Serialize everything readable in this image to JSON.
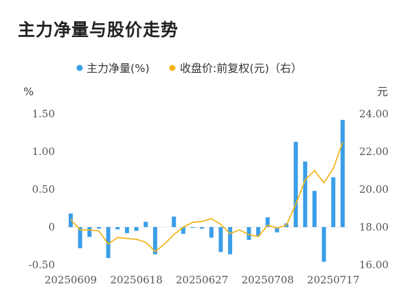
{
  "title": "主力净量与股价走势",
  "chart_data": {
    "type": "bar+line",
    "legend": [
      {
        "label": "主力净量(%)",
        "color": "#3a9ee8"
      },
      {
        "label": "收盘价:前复权(元)（右）",
        "color": "#f2b51e"
      }
    ],
    "left_unit": "%",
    "right_unit": "元",
    "left_ticks": [
      "1.50",
      "1.00",
      "0.50",
      "0",
      "-0.50"
    ],
    "left_tick_values": [
      1.5,
      1.0,
      0.5,
      0,
      -0.5
    ],
    "right_ticks": [
      "24.00",
      "22.00",
      "20.00",
      "18.00",
      "16.00"
    ],
    "right_tick_values": [
      24,
      22,
      20,
      18,
      16
    ],
    "ylim_left": [
      -0.5,
      1.5
    ],
    "ylim_right": [
      16,
      24
    ],
    "x_tick_labels": [
      {
        "label": "20250609",
        "index": 0
      },
      {
        "label": "20250618",
        "index": 7
      },
      {
        "label": "20250627",
        "index": 14
      },
      {
        "label": "20250708",
        "index": 21
      },
      {
        "label": "20250717",
        "index": 28
      }
    ],
    "series": [
      {
        "name": "主力净量(%)",
        "kind": "bar",
        "values": [
          0.18,
          -0.28,
          -0.13,
          -0.02,
          -0.41,
          -0.03,
          -0.08,
          -0.05,
          0.07,
          -0.36,
          0.0,
          0.14,
          -0.09,
          -0.01,
          -0.02,
          -0.14,
          -0.33,
          -0.36,
          0.0,
          -0.17,
          -0.12,
          0.13,
          -0.07,
          0.05,
          1.13,
          0.87,
          0.48,
          -0.46,
          0.66,
          1.42
        ]
      },
      {
        "name": "收盘价:前复权(元)（右）",
        "kind": "line",
        "values": [
          18.4,
          17.85,
          17.85,
          17.8,
          17.1,
          17.45,
          17.4,
          17.35,
          17.2,
          16.7,
          17.1,
          17.6,
          18.0,
          18.25,
          18.3,
          18.45,
          18.15,
          17.65,
          17.85,
          17.6,
          17.5,
          18.1,
          17.95,
          18.1,
          19.2,
          20.5,
          21.0,
          20.35,
          21.1,
          22.5
        ]
      }
    ]
  }
}
